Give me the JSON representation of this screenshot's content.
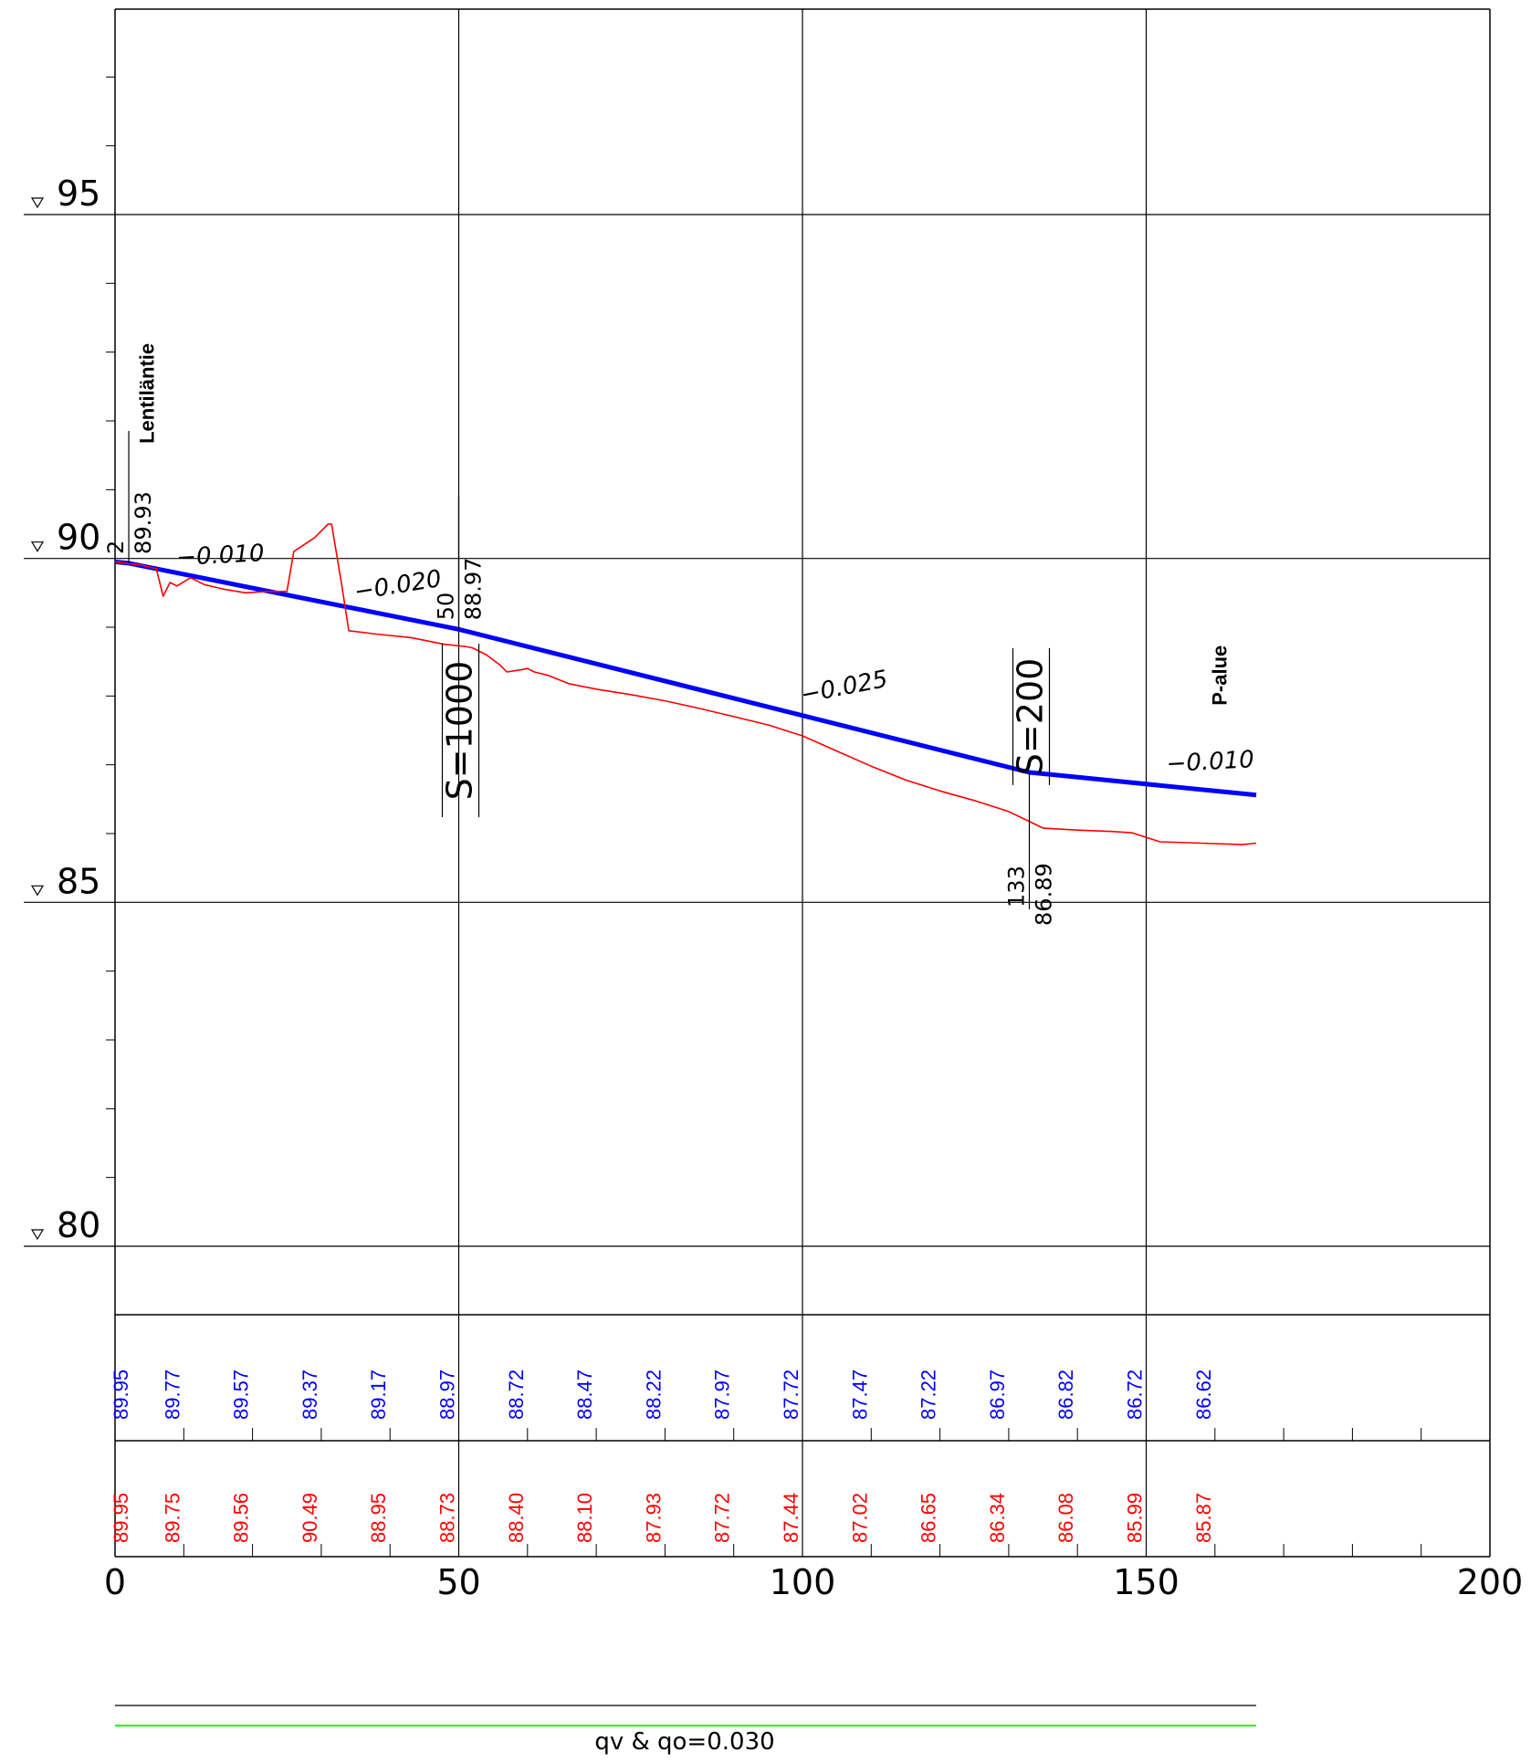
{
  "chart_data": {
    "type": "line",
    "xlim": [
      0,
      200
    ],
    "ylim": [
      79,
      98
    ],
    "x_ticks": [
      0,
      50,
      100,
      150,
      200
    ],
    "x_tick_labels": [
      "0",
      "50",
      "100",
      "150",
      "200"
    ],
    "y_ticks": [
      80,
      85,
      90,
      95
    ],
    "y_tick_labels": [
      "80",
      "85",
      "90",
      "95"
    ],
    "grid": true,
    "series": [
      {
        "role": "design-grade",
        "color": "#0000ff",
        "points": [
          [
            0,
            89.95
          ],
          [
            2,
            89.93
          ],
          [
            50,
            88.97
          ],
          [
            133,
            86.89
          ],
          [
            166,
            86.56
          ]
        ]
      },
      {
        "role": "existing-ground",
        "color": "#ff0000",
        "points": [
          [
            0,
            89.95
          ],
          [
            4,
            89.9
          ],
          [
            6,
            89.85
          ],
          [
            7,
            89.45
          ],
          [
            8,
            89.65
          ],
          [
            9,
            89.6
          ],
          [
            11,
            89.72
          ],
          [
            13,
            89.62
          ],
          [
            16,
            89.55
          ],
          [
            19,
            89.5
          ],
          [
            22,
            89.52
          ],
          [
            25,
            89.52
          ],
          [
            26,
            90.1
          ],
          [
            29,
            90.3
          ],
          [
            31,
            90.5
          ],
          [
            31.5,
            90.5
          ],
          [
            33,
            89.6
          ],
          [
            34,
            88.95
          ],
          [
            38,
            88.9
          ],
          [
            43,
            88.85
          ],
          [
            48,
            88.75
          ],
          [
            51,
            88.72
          ],
          [
            52,
            88.7
          ],
          [
            54,
            88.6
          ],
          [
            56,
            88.45
          ],
          [
            57,
            88.35
          ],
          [
            59,
            88.38
          ],
          [
            60,
            88.4
          ],
          [
            61,
            88.35
          ],
          [
            63,
            88.3
          ],
          [
            66,
            88.18
          ],
          [
            70,
            88.1
          ],
          [
            75,
            88.02
          ],
          [
            80,
            87.93
          ],
          [
            85,
            87.82
          ],
          [
            90,
            87.7
          ],
          [
            95,
            87.58
          ],
          [
            100,
            87.42
          ],
          [
            105,
            87.2
          ],
          [
            110,
            86.98
          ],
          [
            115,
            86.78
          ],
          [
            120,
            86.62
          ],
          [
            125,
            86.48
          ],
          [
            130,
            86.32
          ],
          [
            135,
            86.08
          ],
          [
            140,
            86.05
          ],
          [
            145,
            86.03
          ],
          [
            148,
            86.01
          ],
          [
            152,
            85.88
          ],
          [
            158,
            85.86
          ],
          [
            164,
            85.84
          ],
          [
            166,
            85.86
          ]
        ]
      }
    ],
    "grade_labels": [
      {
        "text": "−0.010",
        "x": 9,
        "y": 89.9,
        "angle": -3
      },
      {
        "text": "−0.020",
        "x": 35,
        "y": 89.4,
        "angle": -9
      },
      {
        "text": "−0.025",
        "x": 100,
        "y": 87.9,
        "angle": -11
      },
      {
        "text": "−0.010",
        "x": 153,
        "y": 86.9,
        "angle": -3
      }
    ],
    "station_markers": [
      {
        "station": "2",
        "elevation": "89.93",
        "x": 2,
        "y": 89.93
      },
      {
        "station": "50",
        "elevation": "88.97",
        "x": 50,
        "y": 88.97
      },
      {
        "station": "133",
        "elevation": "86.89",
        "x": 133,
        "y": 86.89
      }
    ],
    "vertical_curves": [
      {
        "text": "S=1000",
        "x": 50
      },
      {
        "text": "S=200",
        "x": 133
      }
    ],
    "annotations": [
      {
        "text": "Lentiläntie",
        "x": 3,
        "y": 92.4
      },
      {
        "text": "P-alue",
        "x": 159,
        "y": 88.3
      }
    ],
    "band_stations": [
      0,
      10,
      20,
      30,
      40,
      50,
      60,
      70,
      80,
      90,
      100,
      110,
      120,
      130,
      140,
      150,
      160
    ],
    "band_tick_stations": [
      10,
      20,
      30,
      40,
      60,
      70,
      80,
      90,
      110,
      120,
      130,
      140,
      160,
      170,
      180,
      190
    ],
    "design_elevations": [
      "89.95",
      "89.77",
      "89.57",
      "89.37",
      "89.17",
      "88.97",
      "88.72",
      "88.47",
      "88.22",
      "87.97",
      "87.72",
      "87.47",
      "87.22",
      "86.97",
      "86.82",
      "86.72",
      "86.62"
    ],
    "ground_elevations": [
      "89.95",
      "89.75",
      "89.56",
      "90.49",
      "88.95",
      "88.73",
      "88.40",
      "88.10",
      "87.93",
      "87.72",
      "87.44",
      "87.02",
      "86.65",
      "86.34",
      "86.08",
      "85.99",
      "85.87"
    ],
    "footer_note": "qv & qo=0.030",
    "colors": {
      "design": "#0000ff",
      "ground": "#ff0000",
      "grid": "#000000",
      "footer_green": "#00ff00"
    }
  }
}
